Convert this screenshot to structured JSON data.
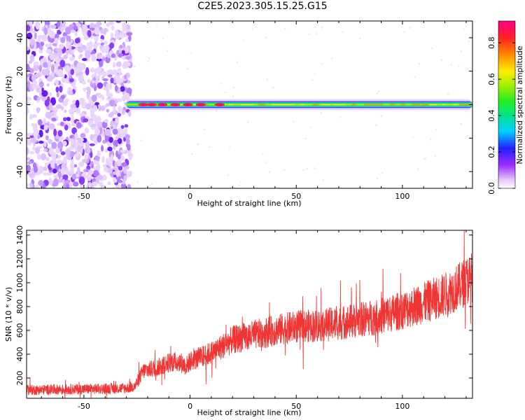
{
  "title": "C2E5.2023.305.15.25.G15",
  "chart_data": [
    {
      "type": "heatmap",
      "xlabel": "Height of straight line (km)",
      "ylabel": "Frequency (Hz)",
      "xlim": [
        -77,
        133
      ],
      "ylim": [
        -50,
        50
      ],
      "xticks": [
        -50,
        0,
        50,
        100
      ],
      "yticks": [
        -40,
        -20,
        0,
        20,
        40
      ],
      "colorbar": {
        "label": "Normalized spectral amplitude",
        "range": [
          0,
          0.92
        ],
        "ticks": [
          0.0,
          0.2,
          0.4,
          0.6,
          0.8
        ]
      },
      "noise_region_km": [
        -77,
        -28
      ],
      "signal_band": {
        "start_km": -30,
        "end_km": 133,
        "frequency_hz": 0
      },
      "strong_peaks_km": [
        -22,
        -18,
        -13,
        -7,
        -1,
        5,
        14
      ]
    },
    {
      "type": "line",
      "xlabel": "Height of straight line (km)",
      "ylabel": "SNR (10 * v/v)",
      "xlim": [
        -77,
        133
      ],
      "ylim": [
        30,
        1440
      ],
      "xticks": [
        -50,
        0,
        50,
        100
      ],
      "yticks": [
        200,
        400,
        600,
        800,
        1000,
        1200,
        1400
      ],
      "color": "#f03535",
      "x": [
        -77,
        -60,
        -40,
        -30,
        -26,
        -22,
        -15,
        -10,
        -5,
        -2,
        0,
        10,
        20,
        30,
        40,
        50,
        60,
        70,
        80,
        90,
        100,
        110,
        120,
        125,
        133
      ],
      "y": [
        100,
        105,
        110,
        115,
        130,
        260,
        290,
        330,
        340,
        300,
        340,
        410,
        520,
        560,
        600,
        630,
        640,
        660,
        690,
        720,
        770,
        830,
        900,
        950,
        1050
      ]
    }
  ]
}
